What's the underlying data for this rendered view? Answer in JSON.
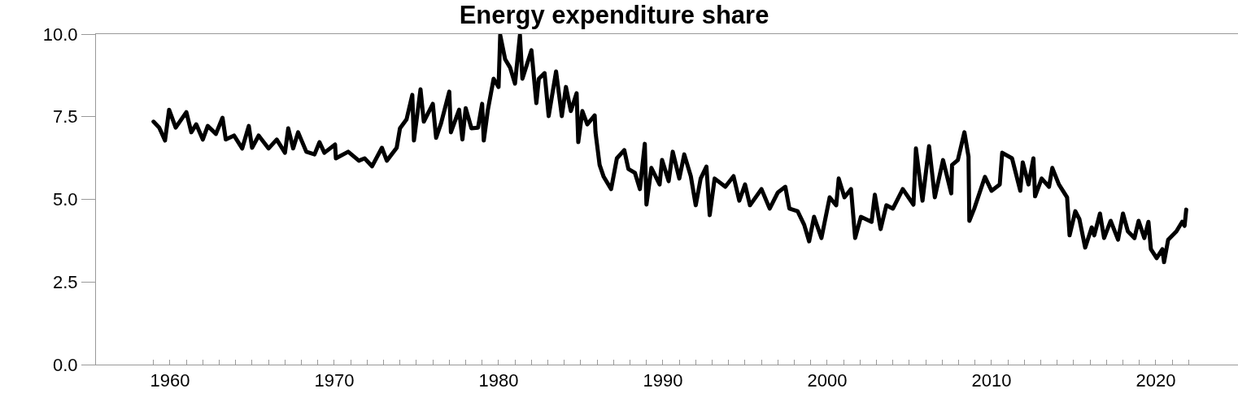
{
  "chart_data": {
    "type": "line",
    "title": "Energy expenditure share",
    "x": [
      1959.0,
      1959.35,
      1959.7,
      1959.95,
      1960.35,
      1961.0,
      1961.3,
      1961.6,
      1962.0,
      1962.3,
      1962.8,
      1963.2,
      1963.4,
      1963.9,
      1964.4,
      1964.8,
      1965.0,
      1965.4,
      1966.0,
      1966.5,
      1967.0,
      1967.2,
      1967.5,
      1967.8,
      1968.3,
      1968.8,
      1969.1,
      1969.4,
      1970.05,
      1970.1,
      1970.85,
      1971.5,
      1971.85,
      1972.3,
      1972.9,
      1973.2,
      1973.8,
      1974.0,
      1974.4,
      1974.75,
      1974.85,
      1975.25,
      1975.45,
      1976.0,
      1976.2,
      1976.5,
      1977.0,
      1977.1,
      1977.6,
      1977.8,
      1978.0,
      1978.35,
      1978.75,
      1979.0,
      1979.1,
      1979.35,
      1979.7,
      1980.0,
      1980.1,
      1980.4,
      1980.7,
      1981.0,
      1981.3,
      1981.45,
      1982.0,
      1982.3,
      1982.45,
      1982.8,
      1983.05,
      1983.5,
      1983.85,
      1984.1,
      1984.4,
      1984.75,
      1984.85,
      1985.1,
      1985.4,
      1985.85,
      1985.9,
      1986.15,
      1986.4,
      1986.85,
      1987.2,
      1987.65,
      1987.9,
      1988.3,
      1988.6,
      1988.9,
      1989.0,
      1989.3,
      1989.8,
      1989.95,
      1990.35,
      1990.6,
      1991.0,
      1991.3,
      1991.7,
      1992.0,
      1992.3,
      1992.65,
      1992.85,
      1993.15,
      1993.8,
      1994.3,
      1994.65,
      1995.0,
      1995.3,
      1996.0,
      1996.5,
      1997.0,
      1997.45,
      1997.7,
      1998.2,
      1998.6,
      1998.9,
      1999.2,
      1999.65,
      2000.15,
      2000.55,
      2000.7,
      2001.05,
      2001.45,
      2001.7,
      2002.05,
      2002.7,
      2002.9,
      2003.25,
      2003.6,
      2004.0,
      2004.6,
      2005.25,
      2005.4,
      2005.8,
      2006.2,
      2006.55,
      2007.05,
      2007.55,
      2007.6,
      2007.95,
      2008.35,
      2008.6,
      2008.65,
      2008.95,
      2009.6,
      2010.0,
      2010.5,
      2010.65,
      2011.25,
      2011.75,
      2011.9,
      2012.25,
      2012.55,
      2012.65,
      2013.05,
      2013.5,
      2013.7,
      2014.1,
      2014.6,
      2014.75,
      2015.1,
      2015.35,
      2015.7,
      2016.1,
      2016.25,
      2016.6,
      2016.85,
      2017.25,
      2017.7,
      2018.0,
      2018.3,
      2018.7,
      2018.95,
      2019.3,
      2019.55,
      2019.7,
      2020.05,
      2020.4,
      2020.5,
      2020.75,
      2021.25,
      2021.6,
      2021.75,
      2021.85
    ],
    "values": [
      7.35,
      7.17,
      6.78,
      7.71,
      7.17,
      7.64,
      7.03,
      7.27,
      6.81,
      7.22,
      6.98,
      7.47,
      6.81,
      6.93,
      6.54,
      7.22,
      6.56,
      6.93,
      6.54,
      6.81,
      6.41,
      7.15,
      6.54,
      7.03,
      6.44,
      6.36,
      6.73,
      6.41,
      6.66,
      6.24,
      6.44,
      6.17,
      6.24,
      6.0,
      6.56,
      6.17,
      6.56,
      7.15,
      7.42,
      8.16,
      6.78,
      8.33,
      7.35,
      7.89,
      6.86,
      7.3,
      8.26,
      7.03,
      7.71,
      6.81,
      7.76,
      7.15,
      7.17,
      7.89,
      6.78,
      7.71,
      8.65,
      8.4,
      9.97,
      9.24,
      8.99,
      8.5,
      9.97,
      8.65,
      9.51,
      7.91,
      8.65,
      8.82,
      7.52,
      8.87,
      7.52,
      8.4,
      7.67,
      8.21,
      6.73,
      7.67,
      7.27,
      7.54,
      7.03,
      6.04,
      5.68,
      5.31,
      6.24,
      6.49,
      5.92,
      5.8,
      5.31,
      6.68,
      4.84,
      5.95,
      5.45,
      6.19,
      5.55,
      6.44,
      5.63,
      6.36,
      5.7,
      4.82,
      5.63,
      5.99,
      4.52,
      5.63,
      5.38,
      5.7,
      4.96,
      5.45,
      4.82,
      5.31,
      4.72,
      5.21,
      5.38,
      4.72,
      4.64,
      4.23,
      3.73,
      4.47,
      3.83,
      5.06,
      4.82,
      5.63,
      5.06,
      5.31,
      3.83,
      4.47,
      4.32,
      5.14,
      4.1,
      4.82,
      4.72,
      5.31,
      4.84,
      6.54,
      4.96,
      6.61,
      5.06,
      6.19,
      5.18,
      6.04,
      6.19,
      7.03,
      6.29,
      4.35,
      4.72,
      5.68,
      5.26,
      5.45,
      6.41,
      6.24,
      5.26,
      6.12,
      5.45,
      6.24,
      5.09,
      5.63,
      5.38,
      5.95,
      5.45,
      5.06,
      3.91,
      4.64,
      4.4,
      3.54,
      4.15,
      3.91,
      4.57,
      3.83,
      4.35,
      3.78,
      4.57,
      4.03,
      3.83,
      4.35,
      3.83,
      4.32,
      3.49,
      3.22,
      3.49,
      3.1,
      3.78,
      4.03,
      4.32,
      4.2,
      4.69
    ],
    "color": "#000000",
    "marker": "none",
    "line_style": "solid",
    "xlim": [
      1955.5,
      2025
    ],
    "xticks": [
      {
        "value": 1959,
        "label": null
      },
      1960,
      {
        "value": 1961,
        "label": null
      },
      {
        "value": 1962,
        "label": null
      },
      {
        "value": 1963,
        "label": null
      },
      {
        "value": 1964,
        "label": null
      },
      {
        "value": 1965,
        "label": null
      },
      {
        "value": 1966,
        "label": null
      },
      {
        "value": 1967,
        "label": null
      },
      {
        "value": 1968,
        "label": null
      },
      {
        "value": 1969,
        "label": null
      },
      1970,
      {
        "value": 1971,
        "label": null
      },
      {
        "value": 1972,
        "label": null
      },
      {
        "value": 1973,
        "label": null
      },
      {
        "value": 1974,
        "label": null
      },
      {
        "value": 1975,
        "label": null
      },
      {
        "value": 1976,
        "label": null
      },
      {
        "value": 1977,
        "label": null
      },
      {
        "value": 1978,
        "label": null
      },
      {
        "value": 1979,
        "label": null
      },
      1980,
      {
        "value": 1981,
        "label": null
      },
      {
        "value": 1982,
        "label": null
      },
      {
        "value": 1983,
        "label": null
      },
      {
        "value": 1984,
        "label": null
      },
      {
        "value": 1985,
        "label": null
      },
      {
        "value": 1986,
        "label": null
      },
      {
        "value": 1987,
        "label": null
      },
      {
        "value": 1988,
        "label": null
      },
      {
        "value": 1989,
        "label": null
      },
      1990,
      {
        "value": 1991,
        "label": null
      },
      {
        "value": 1992,
        "label": null
      },
      {
        "value": 1993,
        "label": null
      },
      {
        "value": 1994,
        "label": null
      },
      {
        "value": 1995,
        "label": null
      },
      {
        "value": 1996,
        "label": null
      },
      {
        "value": 1997,
        "label": null
      },
      {
        "value": 1998,
        "label": null
      },
      {
        "value": 1999,
        "label": null
      },
      2000,
      {
        "value": 2001,
        "label": null
      },
      {
        "value": 2002,
        "label": null
      },
      {
        "value": 2003,
        "label": null
      },
      {
        "value": 2004,
        "label": null
      },
      {
        "value": 2005,
        "label": null
      },
      {
        "value": 2006,
        "label": null
      },
      {
        "value": 2007,
        "label": null
      },
      {
        "value": 2008,
        "label": null
      },
      {
        "value": 2009,
        "label": null
      },
      2010,
      {
        "value": 2011,
        "label": null
      },
      {
        "value": 2012,
        "label": null
      },
      {
        "value": 2013,
        "label": null
      },
      {
        "value": 2014,
        "label": null
      },
      {
        "value": 2015,
        "label": null
      },
      {
        "value": 2016,
        "label": null
      },
      {
        "value": 2017,
        "label": null
      },
      {
        "value": 2018,
        "label": null
      },
      {
        "value": 2019,
        "label": null
      },
      2020,
      {
        "value": 2021,
        "label": null
      },
      {
        "value": 2022,
        "label": null
      }
    ],
    "ylim": [
      0,
      10
    ],
    "yticks": [
      {
        "value": 0,
        "label": "0.0"
      },
      2.5,
      {
        "value": 5,
        "label": "5.0"
      },
      7.5,
      {
        "value": 10,
        "label": "10.0"
      }
    ]
  }
}
